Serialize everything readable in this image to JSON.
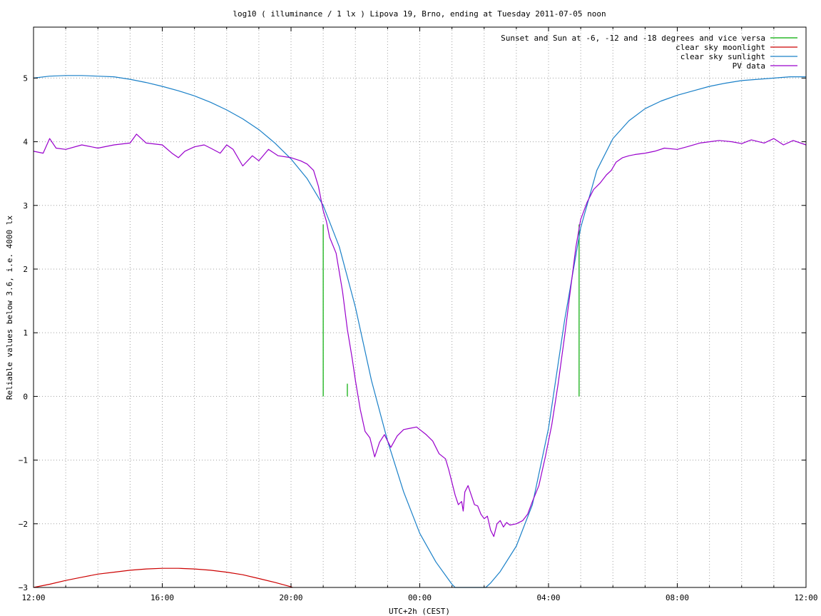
{
  "chart_data": {
    "type": "line",
    "title": "log10 ( illuminance / 1 lx ) Lipova 19, Brno, ending at Tuesday 2011-07-05 noon",
    "xlabel": "UTC+2h (CEST)",
    "ylabel": "Reliable values below 3.6, i.e. 4000 lx",
    "xlim": [
      0,
      24
    ],
    "ylim": [
      -3,
      5.8
    ],
    "x_tick_labels": [
      "12:00",
      "16:00",
      "20:00",
      "00:00",
      "04:00",
      "08:00",
      "12:00"
    ],
    "y_ticks": [
      -3,
      -2,
      -1,
      0,
      1,
      2,
      3,
      4,
      5
    ],
    "grid": true,
    "legend_position": "top-right",
    "series": [
      {
        "name": "Sunset and Sun at -6, -12 and -18 degrees and vice versa",
        "color": "#00aa00",
        "style": "impulses",
        "points": [
          [
            9.0,
            2.7
          ],
          [
            9.75,
            0.2
          ],
          [
            10.75,
            0
          ],
          [
            13.05,
            0
          ],
          [
            15.25,
            0
          ],
          [
            16.3,
            0
          ],
          [
            16.95,
            2.7
          ]
        ]
      },
      {
        "name": "clear sky moonlight",
        "color": "#cc0000",
        "style": "line",
        "points": [
          [
            0,
            -3.0
          ],
          [
            0.5,
            -2.95
          ],
          [
            1,
            -2.89
          ],
          [
            1.5,
            -2.84
          ],
          [
            2,
            -2.79
          ],
          [
            2.5,
            -2.76
          ],
          [
            3,
            -2.73
          ],
          [
            3.5,
            -2.71
          ],
          [
            4,
            -2.7
          ],
          [
            4.5,
            -2.7
          ],
          [
            5,
            -2.71
          ],
          [
            5.5,
            -2.73
          ],
          [
            6,
            -2.76
          ],
          [
            6.5,
            -2.8
          ],
          [
            7,
            -2.86
          ],
          [
            7.5,
            -2.92
          ],
          [
            8,
            -2.99
          ],
          [
            8.05,
            -3.0
          ]
        ]
      },
      {
        "name": "clear sky sunlight",
        "color": "#1a80c8",
        "style": "line",
        "points": [
          [
            0,
            5.0
          ],
          [
            0.5,
            5.03
          ],
          [
            1,
            5.04
          ],
          [
            1.5,
            5.04
          ],
          [
            2,
            5.03
          ],
          [
            2.5,
            5.02
          ],
          [
            3,
            4.98
          ],
          [
            3.5,
            4.93
          ],
          [
            4,
            4.87
          ],
          [
            4.5,
            4.8
          ],
          [
            5,
            4.72
          ],
          [
            5.5,
            4.62
          ],
          [
            6,
            4.5
          ],
          [
            6.5,
            4.36
          ],
          [
            7,
            4.19
          ],
          [
            7.5,
            3.98
          ],
          [
            8,
            3.73
          ],
          [
            8.5,
            3.42
          ],
          [
            9,
            3.0
          ],
          [
            9.5,
            2.35
          ],
          [
            10,
            1.4
          ],
          [
            10.5,
            0.25
          ],
          [
            11,
            -0.7
          ],
          [
            11.5,
            -1.5
          ],
          [
            12,
            -2.15
          ],
          [
            12.5,
            -2.6
          ],
          [
            13,
            -2.95
          ],
          [
            13.1,
            -3.0
          ],
          [
            14.05,
            -3.0
          ],
          [
            14.2,
            -2.93
          ],
          [
            14.5,
            -2.75
          ],
          [
            15,
            -2.35
          ],
          [
            15.5,
            -1.7
          ],
          [
            16,
            -0.5
          ],
          [
            16.5,
            1.2
          ],
          [
            17,
            2.65
          ],
          [
            17.5,
            3.55
          ],
          [
            18,
            4.05
          ],
          [
            18.5,
            4.33
          ],
          [
            19,
            4.52
          ],
          [
            19.5,
            4.64
          ],
          [
            20,
            4.73
          ],
          [
            20.5,
            4.8
          ],
          [
            21,
            4.87
          ],
          [
            21.5,
            4.92
          ],
          [
            22,
            4.96
          ],
          [
            22.5,
            4.98
          ],
          [
            23,
            5.0
          ],
          [
            23.5,
            5.02
          ],
          [
            24,
            5.02
          ]
        ]
      },
      {
        "name": "PV data",
        "color": "#9900cc",
        "style": "line",
        "points": [
          [
            0,
            3.85
          ],
          [
            0.3,
            3.82
          ],
          [
            0.5,
            4.05
          ],
          [
            0.7,
            3.9
          ],
          [
            1,
            3.88
          ],
          [
            1.5,
            3.95
          ],
          [
            2,
            3.9
          ],
          [
            2.5,
            3.95
          ],
          [
            3,
            3.98
          ],
          [
            3.2,
            4.12
          ],
          [
            3.5,
            3.98
          ],
          [
            4,
            3.95
          ],
          [
            4.3,
            3.82
          ],
          [
            4.5,
            3.75
          ],
          [
            4.7,
            3.85
          ],
          [
            5,
            3.92
          ],
          [
            5.3,
            3.95
          ],
          [
            5.5,
            3.9
          ],
          [
            5.8,
            3.82
          ],
          [
            6,
            3.95
          ],
          [
            6.2,
            3.88
          ],
          [
            6.5,
            3.62
          ],
          [
            6.8,
            3.78
          ],
          [
            7,
            3.7
          ],
          [
            7.3,
            3.88
          ],
          [
            7.6,
            3.78
          ],
          [
            8,
            3.75
          ],
          [
            8.3,
            3.7
          ],
          [
            8.5,
            3.65
          ],
          [
            8.7,
            3.55
          ],
          [
            8.85,
            3.3
          ],
          [
            9.0,
            2.92
          ],
          [
            9.1,
            2.75
          ],
          [
            9.2,
            2.5
          ],
          [
            9.4,
            2.25
          ],
          [
            9.6,
            1.65
          ],
          [
            9.75,
            1.05
          ],
          [
            9.9,
            0.6
          ],
          [
            10.0,
            0.25
          ],
          [
            10.15,
            -0.2
          ],
          [
            10.3,
            -0.55
          ],
          [
            10.45,
            -0.65
          ],
          [
            10.6,
            -0.95
          ],
          [
            10.75,
            -0.72
          ],
          [
            10.9,
            -0.6
          ],
          [
            11.1,
            -0.8
          ],
          [
            11.3,
            -0.62
          ],
          [
            11.5,
            -0.52
          ],
          [
            11.7,
            -0.5
          ],
          [
            11.9,
            -0.48
          ],
          [
            12.0,
            -0.52
          ],
          [
            12.2,
            -0.6
          ],
          [
            12.4,
            -0.7
          ],
          [
            12.6,
            -0.9
          ],
          [
            12.8,
            -0.98
          ],
          [
            12.9,
            -1.15
          ],
          [
            13.0,
            -1.35
          ],
          [
            13.1,
            -1.55
          ],
          [
            13.2,
            -1.7
          ],
          [
            13.3,
            -1.65
          ],
          [
            13.35,
            -1.8
          ],
          [
            13.4,
            -1.5
          ],
          [
            13.5,
            -1.4
          ],
          [
            13.6,
            -1.55
          ],
          [
            13.7,
            -1.7
          ],
          [
            13.8,
            -1.72
          ],
          [
            13.9,
            -1.85
          ],
          [
            14.0,
            -1.92
          ],
          [
            14.1,
            -1.88
          ],
          [
            14.2,
            -2.1
          ],
          [
            14.3,
            -2.2
          ],
          [
            14.4,
            -2.0
          ],
          [
            14.5,
            -1.95
          ],
          [
            14.6,
            -2.05
          ],
          [
            14.7,
            -1.98
          ],
          [
            14.8,
            -2.02
          ],
          [
            15.0,
            -2.0
          ],
          [
            15.2,
            -1.95
          ],
          [
            15.35,
            -1.85
          ],
          [
            15.5,
            -1.65
          ],
          [
            15.7,
            -1.4
          ],
          [
            15.9,
            -0.95
          ],
          [
            16.1,
            -0.45
          ],
          [
            16.3,
            0.2
          ],
          [
            16.5,
            0.95
          ],
          [
            16.7,
            1.75
          ],
          [
            16.85,
            2.35
          ],
          [
            17.0,
            2.78
          ],
          [
            17.2,
            3.05
          ],
          [
            17.4,
            3.25
          ],
          [
            17.6,
            3.35
          ],
          [
            17.8,
            3.48
          ],
          [
            17.95,
            3.55
          ],
          [
            18.1,
            3.68
          ],
          [
            18.3,
            3.75
          ],
          [
            18.5,
            3.78
          ],
          [
            18.7,
            3.8
          ],
          [
            19.0,
            3.82
          ],
          [
            19.3,
            3.85
          ],
          [
            19.6,
            3.9
          ],
          [
            20.0,
            3.88
          ],
          [
            20.3,
            3.92
          ],
          [
            20.7,
            3.98
          ],
          [
            21.0,
            4.0
          ],
          [
            21.3,
            4.02
          ],
          [
            21.7,
            4.0
          ],
          [
            22.0,
            3.97
          ],
          [
            22.3,
            4.03
          ],
          [
            22.7,
            3.98
          ],
          [
            23.0,
            4.05
          ],
          [
            23.3,
            3.95
          ],
          [
            23.6,
            4.02
          ],
          [
            24.0,
            3.95
          ]
        ]
      }
    ]
  }
}
